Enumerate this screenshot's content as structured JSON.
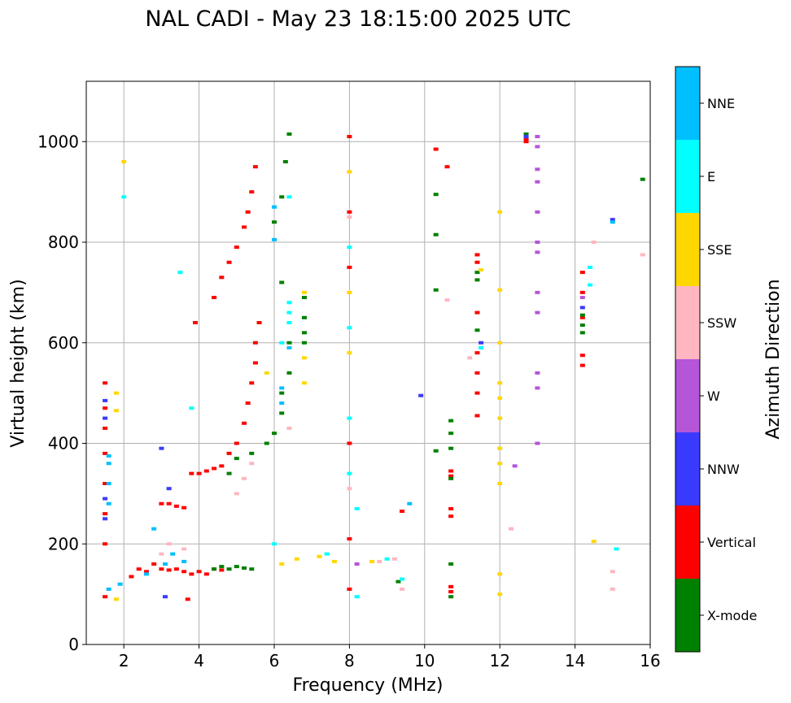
{
  "chart_data": {
    "type": "scatter",
    "title": "NAL CADI - May 23 18:15:00 2025 UTC",
    "xlabel": "Frequency (MHz)",
    "ylabel": "Virtual height (km)",
    "xlim": [
      1,
      16
    ],
    "ylim": [
      0,
      1120
    ],
    "xticks": [
      "2",
      "4",
      "6",
      "8",
      "10",
      "12",
      "14",
      "16"
    ],
    "yticks": [
      "0",
      "200",
      "400",
      "600",
      "800",
      "1000"
    ],
    "grid": true,
    "colorbar": {
      "title": "Azimuth Direction",
      "position": "right",
      "categories": [
        {
          "name": "X-mode",
          "color": "#008000"
        },
        {
          "name": "Vertical",
          "color": "#ff0000"
        },
        {
          "name": "NNW",
          "color": "#3a3aff"
        },
        {
          "name": "W",
          "color": "#b555d8"
        },
        {
          "name": "SSW",
          "color": "#ffb6c1"
        },
        {
          "name": "SSE",
          "color": "#ffd700"
        },
        {
          "name": "E",
          "color": "#00ffff"
        },
        {
          "name": "NNE",
          "color": "#00bfff"
        }
      ]
    },
    "series": [
      {
        "name": "Vertical",
        "color": "#ff0000",
        "points": [
          [
            1.5,
            200
          ],
          [
            1.5,
            260
          ],
          [
            1.5,
            320
          ],
          [
            1.5,
            380
          ],
          [
            1.5,
            430
          ],
          [
            1.5,
            470
          ],
          [
            1.5,
            520
          ],
          [
            2.2,
            135
          ],
          [
            2.4,
            150
          ],
          [
            2.6,
            145
          ],
          [
            2.8,
            160
          ],
          [
            3.0,
            150
          ],
          [
            3.2,
            148
          ],
          [
            3.4,
            150
          ],
          [
            3.6,
            145
          ],
          [
            3.8,
            140
          ],
          [
            4.0,
            145
          ],
          [
            4.2,
            140
          ],
          [
            4.4,
            150
          ],
          [
            4.6,
            148
          ],
          [
            3.0,
            280
          ],
          [
            3.2,
            280
          ],
          [
            3.4,
            275
          ],
          [
            3.6,
            272
          ],
          [
            3.8,
            340
          ],
          [
            4.0,
            340
          ],
          [
            4.2,
            345
          ],
          [
            4.4,
            350
          ],
          [
            4.6,
            355
          ],
          [
            4.8,
            380
          ],
          [
            5.0,
            400
          ],
          [
            5.2,
            440
          ],
          [
            5.3,
            480
          ],
          [
            5.4,
            520
          ],
          [
            5.5,
            560
          ],
          [
            5.5,
            600
          ],
          [
            5.6,
            640
          ],
          [
            3.9,
            640
          ],
          [
            4.4,
            690
          ],
          [
            4.6,
            730
          ],
          [
            4.8,
            760
          ],
          [
            5.0,
            790
          ],
          [
            5.2,
            830
          ],
          [
            5.3,
            860
          ],
          [
            5.4,
            900
          ],
          [
            5.5,
            950
          ],
          [
            3.7,
            90
          ],
          [
            1.5,
            95
          ],
          [
            8.0,
            1010
          ],
          [
            8.0,
            860
          ],
          [
            8.0,
            750
          ],
          [
            8.0,
            400
          ],
          [
            8.0,
            210
          ],
          [
            8.0,
            110
          ],
          [
            10.3,
            985
          ],
          [
            10.6,
            950
          ],
          [
            9.4,
            265
          ],
          [
            10.7,
            105
          ],
          [
            10.7,
            115
          ],
          [
            10.7,
            255
          ],
          [
            10.7,
            270
          ],
          [
            10.7,
            335
          ],
          [
            10.7,
            345
          ],
          [
            11.4,
            455
          ],
          [
            11.4,
            500
          ],
          [
            11.4,
            540
          ],
          [
            11.4,
            580
          ],
          [
            11.4,
            660
          ],
          [
            11.4,
            760
          ],
          [
            11.4,
            775
          ],
          [
            12.7,
            1005
          ],
          [
            12.7,
            1000
          ],
          [
            14.2,
            555
          ],
          [
            14.2,
            575
          ],
          [
            14.2,
            650
          ],
          [
            14.2,
            700
          ],
          [
            14.2,
            740
          ]
        ]
      },
      {
        "name": "X-mode",
        "color": "#008000",
        "points": [
          [
            4.4,
            150
          ],
          [
            4.6,
            155
          ],
          [
            4.8,
            150
          ],
          [
            5.0,
            155
          ],
          [
            5.2,
            152
          ],
          [
            5.4,
            150
          ],
          [
            4.8,
            340
          ],
          [
            5.0,
            370
          ],
          [
            5.4,
            380
          ],
          [
            5.8,
            400
          ],
          [
            6.0,
            420
          ],
          [
            6.2,
            460
          ],
          [
            6.2,
            500
          ],
          [
            6.4,
            540
          ],
          [
            6.4,
            600
          ],
          [
            6.4,
            640
          ],
          [
            6.2,
            720
          ],
          [
            6.0,
            840
          ],
          [
            6.2,
            890
          ],
          [
            6.3,
            960
          ],
          [
            6.4,
            1015
          ],
          [
            6.8,
            600
          ],
          [
            6.8,
            620
          ],
          [
            6.8,
            650
          ],
          [
            6.8,
            690
          ],
          [
            10.3,
            895
          ],
          [
            10.3,
            815
          ],
          [
            10.3,
            705
          ],
          [
            10.3,
            385
          ],
          [
            10.7,
            95
          ],
          [
            10.7,
            160
          ],
          [
            10.7,
            330
          ],
          [
            10.7,
            390
          ],
          [
            10.7,
            420
          ],
          [
            10.7,
            445
          ],
          [
            11.4,
            625
          ],
          [
            11.4,
            725
          ],
          [
            11.4,
            740
          ],
          [
            14.2,
            620
          ],
          [
            14.2,
            635
          ],
          [
            14.2,
            655
          ],
          [
            15.8,
            925
          ],
          [
            12.7,
            1015
          ],
          [
            9.3,
            125
          ]
        ]
      },
      {
        "name": "NNW",
        "color": "#3a3aff",
        "points": [
          [
            1.5,
            250
          ],
          [
            1.5,
            290
          ],
          [
            1.5,
            450
          ],
          [
            1.5,
            485
          ],
          [
            3.0,
            390
          ],
          [
            3.2,
            310
          ],
          [
            9.9,
            495
          ],
          [
            11.5,
            600
          ],
          [
            15.0,
            845
          ],
          [
            14.2,
            670
          ],
          [
            12.7,
            1010
          ],
          [
            3.1,
            95
          ]
        ]
      },
      {
        "name": "W",
        "color": "#b555d8",
        "points": [
          [
            13.0,
            1010
          ],
          [
            13.0,
            990
          ],
          [
            13.0,
            945
          ],
          [
            13.0,
            920
          ],
          [
            13.0,
            860
          ],
          [
            13.0,
            800
          ],
          [
            13.0,
            780
          ],
          [
            13.0,
            700
          ],
          [
            13.0,
            660
          ],
          [
            13.0,
            540
          ],
          [
            13.0,
            510
          ],
          [
            13.0,
            400
          ],
          [
            12.4,
            355
          ],
          [
            8.2,
            160
          ],
          [
            14.2,
            690
          ]
        ]
      },
      {
        "name": "SSW",
        "color": "#ffb6c1",
        "points": [
          [
            3.0,
            180
          ],
          [
            3.2,
            200
          ],
          [
            3.6,
            190
          ],
          [
            5.0,
            300
          ],
          [
            5.2,
            330
          ],
          [
            5.4,
            360
          ],
          [
            6.4,
            430
          ],
          [
            8.0,
            850
          ],
          [
            8.0,
            310
          ],
          [
            8.8,
            165
          ],
          [
            9.2,
            170
          ],
          [
            9.4,
            110
          ],
          [
            11.2,
            570
          ],
          [
            12.3,
            230
          ],
          [
            14.5,
            800
          ],
          [
            15.0,
            110
          ],
          [
            15.0,
            145
          ],
          [
            15.8,
            775
          ],
          [
            10.6,
            685
          ]
        ]
      },
      {
        "name": "SSE",
        "color": "#ffd700",
        "points": [
          [
            2.0,
            960
          ],
          [
            1.8,
            500
          ],
          [
            1.8,
            465
          ],
          [
            5.8,
            540
          ],
          [
            6.2,
            160
          ],
          [
            6.6,
            170
          ],
          [
            6.8,
            520
          ],
          [
            6.8,
            570
          ],
          [
            6.8,
            700
          ],
          [
            7.2,
            175
          ],
          [
            7.6,
            165
          ],
          [
            8.0,
            940
          ],
          [
            8.0,
            700
          ],
          [
            8.0,
            580
          ],
          [
            8.6,
            165
          ],
          [
            11.5,
            745
          ],
          [
            12.0,
            860
          ],
          [
            12.0,
            705
          ],
          [
            12.0,
            600
          ],
          [
            12.0,
            520
          ],
          [
            12.0,
            490
          ],
          [
            12.0,
            450
          ],
          [
            12.0,
            390
          ],
          [
            12.0,
            360
          ],
          [
            12.0,
            320
          ],
          [
            12.0,
            140
          ],
          [
            12.0,
            100
          ],
          [
            14.5,
            205
          ],
          [
            1.8,
            90
          ]
        ]
      },
      {
        "name": "E",
        "color": "#00ffff",
        "points": [
          [
            2.0,
            890
          ],
          [
            3.5,
            740
          ],
          [
            3.8,
            470
          ],
          [
            6.0,
            200
          ],
          [
            6.2,
            600
          ],
          [
            6.4,
            640
          ],
          [
            6.4,
            660
          ],
          [
            6.4,
            680
          ],
          [
            7.4,
            180
          ],
          [
            8.0,
            790
          ],
          [
            8.0,
            630
          ],
          [
            8.0,
            450
          ],
          [
            8.0,
            340
          ],
          [
            8.2,
            95
          ],
          [
            8.2,
            270
          ],
          [
            9.0,
            170
          ],
          [
            9.4,
            130
          ],
          [
            11.5,
            590
          ],
          [
            14.4,
            750
          ],
          [
            14.4,
            715
          ],
          [
            15.1,
            190
          ],
          [
            6.0,
            870
          ],
          [
            6.4,
            890
          ]
        ]
      },
      {
        "name": "NNE",
        "color": "#00bfff",
        "points": [
          [
            1.6,
            280
          ],
          [
            1.6,
            320
          ],
          [
            1.6,
            360
          ],
          [
            1.6,
            375
          ],
          [
            1.6,
            110
          ],
          [
            1.9,
            120
          ],
          [
            2.6,
            140
          ],
          [
            2.8,
            230
          ],
          [
            3.1,
            160
          ],
          [
            3.3,
            180
          ],
          [
            3.6,
            165
          ],
          [
            6.2,
            480
          ],
          [
            6.0,
            870
          ],
          [
            6.0,
            805
          ],
          [
            6.4,
            590
          ],
          [
            6.2,
            510
          ],
          [
            9.6,
            280
          ],
          [
            15.0,
            840
          ]
        ]
      }
    ]
  }
}
